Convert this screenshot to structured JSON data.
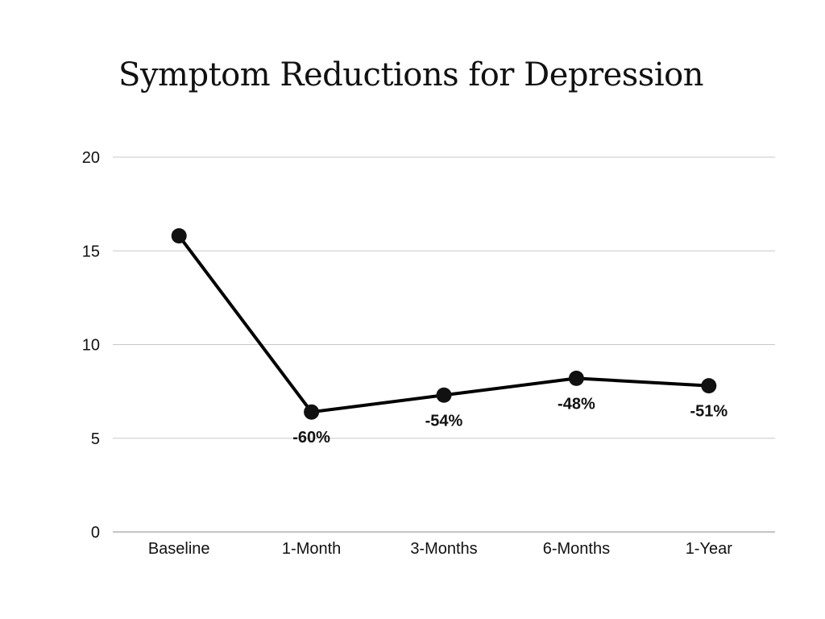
{
  "chart_data": {
    "type": "line",
    "title": "Symptom Reductions for Depression",
    "xlabel": "",
    "ylabel": "",
    "categories": [
      "Baseline",
      "1-Month",
      "3-Months",
      "6-Months",
      "1-Year"
    ],
    "values": [
      15.8,
      6.4,
      7.3,
      8.2,
      7.8
    ],
    "data_labels": [
      "",
      "-60%",
      "-54%",
      "-48%",
      "-51%"
    ],
    "ylim": [
      0,
      20
    ],
    "yticks": [
      "0",
      "5",
      "10",
      "15",
      "20"
    ],
    "ytick_values": [
      0,
      5,
      10,
      15,
      20
    ],
    "grid": true,
    "legend": "none",
    "line_color": "#000000",
    "grid_color": "#c8c8c8"
  }
}
